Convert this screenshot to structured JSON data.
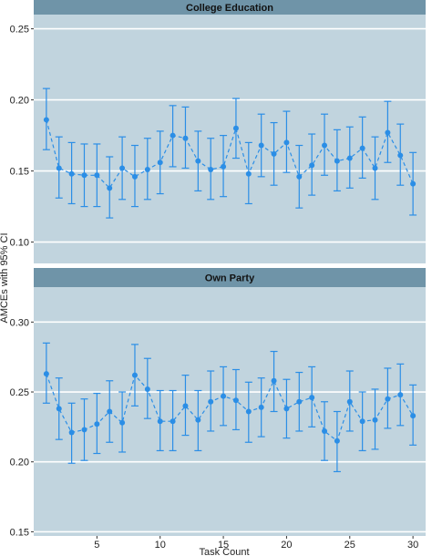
{
  "chart_data": {
    "type": "scatter",
    "ylabel": "AMCEs with 95% CI",
    "xlabel": "Task Count",
    "x_ticks": [
      5,
      10,
      15,
      20,
      25,
      30
    ],
    "xlim": [
      0,
      31
    ],
    "colors": {
      "panel_bg": "#c1d4de",
      "strip_bg": "#6f94a8",
      "point": "#2b8ee6",
      "grid": "#ffffff"
    },
    "panels": [
      {
        "strip": "College Education",
        "ylim": [
          0.085,
          0.26
        ],
        "y_ticks": [
          0.1,
          0.15,
          0.2,
          0.25
        ],
        "y_tick_labels": [
          "0.10",
          "0.15",
          "0.20",
          "0.25"
        ],
        "x": [
          1,
          2,
          3,
          4,
          5,
          6,
          7,
          8,
          9,
          10,
          11,
          12,
          13,
          14,
          15,
          16,
          17,
          18,
          19,
          20,
          21,
          22,
          23,
          24,
          25,
          26,
          27,
          28,
          29,
          30
        ],
        "estimate": [
          0.186,
          0.152,
          0.148,
          0.147,
          0.147,
          0.138,
          0.152,
          0.146,
          0.151,
          0.156,
          0.175,
          0.173,
          0.157,
          0.151,
          0.153,
          0.18,
          0.148,
          0.168,
          0.162,
          0.17,
          0.146,
          0.154,
          0.168,
          0.157,
          0.159,
          0.166,
          0.152,
          0.177,
          0.161,
          0.141
        ],
        "lower": [
          0.165,
          0.131,
          0.127,
          0.125,
          0.125,
          0.117,
          0.13,
          0.125,
          0.13,
          0.134,
          0.153,
          0.152,
          0.136,
          0.13,
          0.132,
          0.159,
          0.127,
          0.146,
          0.14,
          0.149,
          0.124,
          0.133,
          0.147,
          0.136,
          0.138,
          0.145,
          0.13,
          0.156,
          0.14,
          0.119
        ],
        "upper": [
          0.208,
          0.174,
          0.17,
          0.169,
          0.169,
          0.16,
          0.174,
          0.168,
          0.173,
          0.178,
          0.196,
          0.195,
          0.178,
          0.173,
          0.175,
          0.201,
          0.17,
          0.19,
          0.184,
          0.192,
          0.168,
          0.176,
          0.19,
          0.179,
          0.181,
          0.188,
          0.174,
          0.199,
          0.183,
          0.163
        ]
      },
      {
        "strip": "Own Party",
        "ylim": [
          0.147,
          0.325
        ],
        "y_ticks": [
          0.15,
          0.2,
          0.25,
          0.3
        ],
        "y_tick_labels": [
          "0.15",
          "0.20",
          "0.25",
          "0.30"
        ],
        "x": [
          1,
          2,
          3,
          4,
          5,
          6,
          7,
          8,
          9,
          10,
          11,
          12,
          13,
          14,
          15,
          16,
          17,
          18,
          19,
          20,
          21,
          22,
          23,
          24,
          25,
          26,
          27,
          28,
          29,
          30
        ],
        "estimate": [
          0.263,
          0.238,
          0.221,
          0.223,
          0.227,
          0.236,
          0.228,
          0.262,
          0.252,
          0.229,
          0.229,
          0.24,
          0.23,
          0.243,
          0.247,
          0.244,
          0.236,
          0.239,
          0.258,
          0.238,
          0.243,
          0.246,
          0.222,
          0.215,
          0.243,
          0.229,
          0.23,
          0.245,
          0.248,
          0.233
        ],
        "lower": [
          0.242,
          0.216,
          0.199,
          0.201,
          0.206,
          0.214,
          0.207,
          0.24,
          0.231,
          0.208,
          0.208,
          0.219,
          0.208,
          0.222,
          0.226,
          0.223,
          0.214,
          0.218,
          0.236,
          0.217,
          0.222,
          0.225,
          0.201,
          0.193,
          0.222,
          0.208,
          0.209,
          0.224,
          0.226,
          0.212
        ],
        "upper": [
          0.285,
          0.26,
          0.242,
          0.245,
          0.249,
          0.258,
          0.25,
          0.284,
          0.274,
          0.251,
          0.251,
          0.262,
          0.251,
          0.265,
          0.268,
          0.266,
          0.257,
          0.26,
          0.279,
          0.259,
          0.264,
          0.268,
          0.243,
          0.236,
          0.265,
          0.25,
          0.252,
          0.267,
          0.27,
          0.255
        ]
      }
    ]
  }
}
